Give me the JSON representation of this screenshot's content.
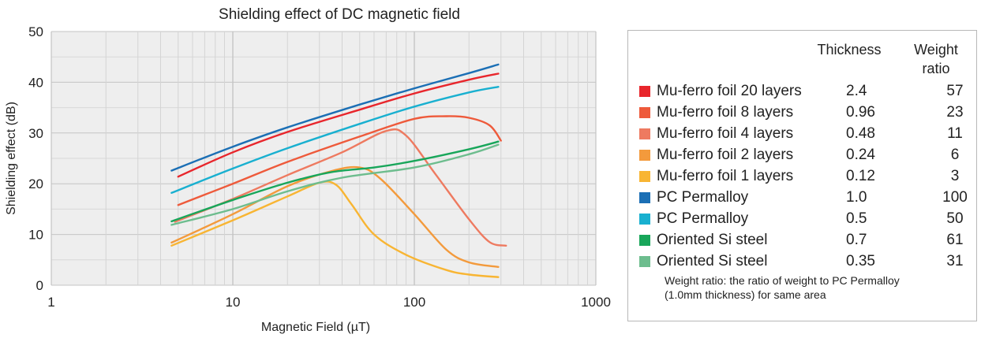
{
  "chart_data": {
    "type": "line",
    "title": "Shielding effect of DC magnetic field",
    "xlabel": "Magnetic Field  (µT)",
    "ylabel": "Shielding effect (dB)",
    "x_scale": "log",
    "xlim": [
      1,
      1000
    ],
    "ylim": [
      0,
      50
    ],
    "x_ticks": [
      1,
      10,
      100,
      1000
    ],
    "y_ticks": [
      0,
      10,
      20,
      30,
      40,
      50
    ],
    "grid": true,
    "legend_position": "right",
    "legend_columns": [
      "Thickness",
      "Weight ratio"
    ],
    "series": [
      {
        "name": "Mu-ferro foil 20 layers",
        "thickness": "2.4",
        "weight_ratio": "57",
        "color": "#e8262c",
        "points": [
          [
            5,
            21.4
          ],
          [
            10,
            26.2
          ],
          [
            20,
            30.2
          ],
          [
            50,
            34.6
          ],
          [
            100,
            37.8
          ],
          [
            200,
            40.5
          ],
          [
            290,
            41.7
          ]
        ]
      },
      {
        "name": "Mu-ferro foil 8 layers",
        "thickness": "0.96",
        "weight_ratio": "23",
        "color": "#ee5a3b",
        "points": [
          [
            5,
            15.8
          ],
          [
            10,
            20
          ],
          [
            20,
            24.3
          ],
          [
            50,
            29.3
          ],
          [
            100,
            32.8
          ],
          [
            150,
            33.3
          ],
          [
            200,
            33
          ],
          [
            260,
            31.5
          ],
          [
            300,
            28.5
          ]
        ]
      },
      {
        "name": "Mu-ferro foil 4 layers",
        "thickness": "0.48",
        "weight_ratio": "11",
        "color": "#ee7a60",
        "points": [
          [
            4.8,
            12.5
          ],
          [
            10,
            17
          ],
          [
            20,
            21.7
          ],
          [
            40,
            26.2
          ],
          [
            70,
            30.4
          ],
          [
            90,
            29.5
          ],
          [
            130,
            22
          ],
          [
            200,
            13
          ],
          [
            260,
            8.5
          ],
          [
            320,
            7.8
          ]
        ]
      },
      {
        "name": "Mu-ferro foil 2 layers",
        "thickness": "0.24",
        "weight_ratio": "6",
        "color": "#f39a3c",
        "points": [
          [
            4.6,
            8.4
          ],
          [
            10,
            14
          ],
          [
            20,
            19.5
          ],
          [
            35,
            22.5
          ],
          [
            50,
            23.2
          ],
          [
            65,
            21
          ],
          [
            100,
            14
          ],
          [
            150,
            7
          ],
          [
            200,
            4.5
          ],
          [
            290,
            3.6
          ]
        ]
      },
      {
        "name": "Mu-ferro foil 1 layers",
        "thickness": "0.12",
        "weight_ratio": "3",
        "color": "#f8b533",
        "points": [
          [
            4.6,
            7.8
          ],
          [
            10,
            12.8
          ],
          [
            20,
            17.5
          ],
          [
            30,
            20.2
          ],
          [
            37,
            19.8
          ],
          [
            45,
            16
          ],
          [
            60,
            10
          ],
          [
            90,
            6
          ],
          [
            150,
            3
          ],
          [
            200,
            2.1
          ],
          [
            290,
            1.6
          ]
        ]
      },
      {
        "name": "PC Permalloy",
        "thickness": "1.0",
        "weight_ratio": "100",
        "color": "#1b6fb5",
        "points": [
          [
            4.6,
            22.6
          ],
          [
            10,
            27.3
          ],
          [
            20,
            31.1
          ],
          [
            50,
            35.6
          ],
          [
            100,
            38.8
          ],
          [
            200,
            41.8
          ],
          [
            290,
            43.5
          ]
        ]
      },
      {
        "name": "PC Permalloy",
        "thickness": "0.5",
        "weight_ratio": "50",
        "color": "#19b0d0",
        "points": [
          [
            4.6,
            18.2
          ],
          [
            10,
            23
          ],
          [
            20,
            27
          ],
          [
            50,
            31.8
          ],
          [
            100,
            35.2
          ],
          [
            200,
            38
          ],
          [
            290,
            39.1
          ]
        ]
      },
      {
        "name": "Oriented Si steel",
        "thickness": "0.7",
        "weight_ratio": "61",
        "color": "#18a65a",
        "points": [
          [
            4.6,
            12.6
          ],
          [
            10,
            16.8
          ],
          [
            20,
            20.2
          ],
          [
            35,
            22.3
          ],
          [
            60,
            23.2
          ],
          [
            100,
            24.5
          ],
          [
            200,
            26.8
          ],
          [
            290,
            28.3
          ]
        ]
      },
      {
        "name": "Oriented Si steel",
        "thickness": "0.35",
        "weight_ratio": "31",
        "color": "#6dbd8e",
        "points": [
          [
            4.6,
            11.9
          ],
          [
            10,
            15
          ],
          [
            20,
            18.5
          ],
          [
            40,
            21.2
          ],
          [
            100,
            23.2
          ],
          [
            200,
            25.8
          ],
          [
            290,
            27.7
          ]
        ]
      }
    ]
  },
  "legend": {
    "head_thickness": "Thickness",
    "head_weight": "Weight",
    "head_ratio": "ratio",
    "note_line1": "Weight ratio: the ratio of weight to PC Permalloy",
    "note_line2": "(1.0mm thickness) for same area"
  }
}
